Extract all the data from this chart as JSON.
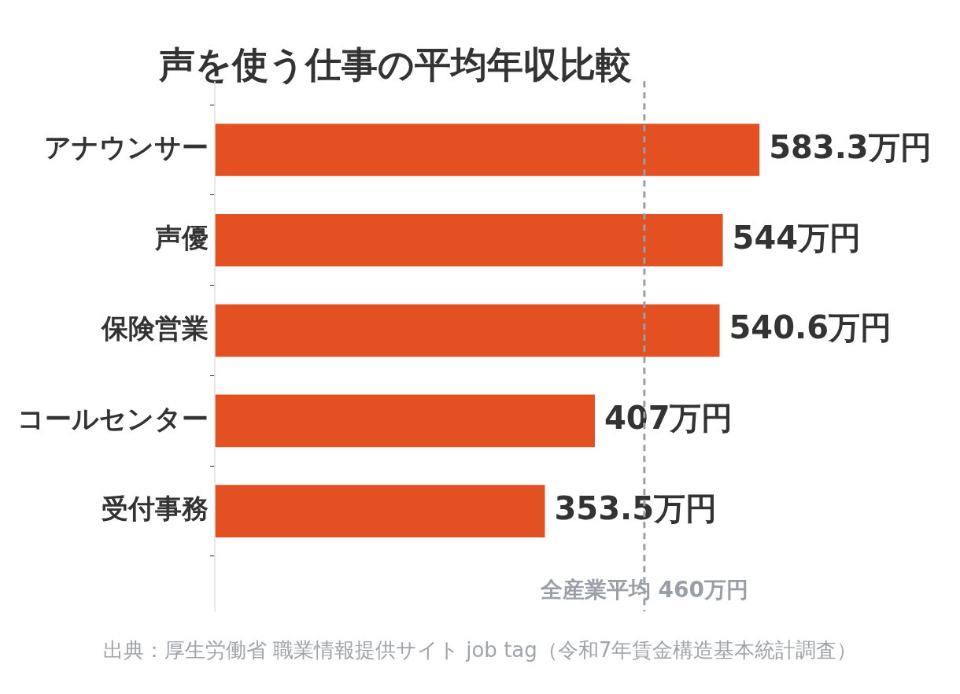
{
  "chart_data": {
    "type": "bar",
    "orientation": "horizontal",
    "title": "声を使う仕事の平均年収比較",
    "categories": [
      "アナウンサー",
      "声優",
      "保険営業",
      "コールセンター",
      "受付事務"
    ],
    "values": [
      583.3,
      544,
      540.6,
      407,
      353.5
    ],
    "color": "#e35022",
    "value_labels": [
      "583.3万円",
      "544万円",
      "540.6万円",
      "407万円",
      "353.5万円"
    ],
    "ref_lines": [
      {
        "axis": "x",
        "value": 460,
        "label": "全産業平均 460万円",
        "color": "#9a9ea6",
        "line_style": "dashed"
      }
    ],
    "annotations": [
      "出典：厚生労働省 職業情報提供サイト job tag（令和7年賃金構造基本統計調査）"
    ],
    "legend": false,
    "grid": false
  }
}
